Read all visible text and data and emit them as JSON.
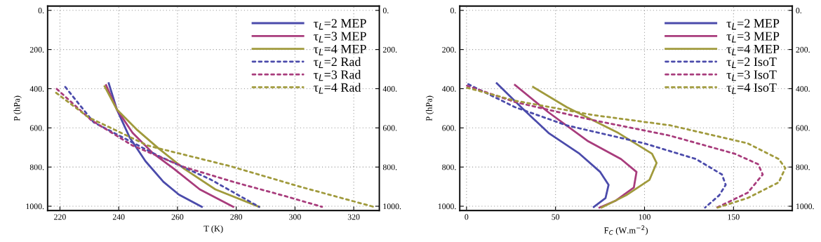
{
  "chart_data": [
    {
      "type": "line",
      "xlabel": "T (K)",
      "ylabel": "P (hPa)",
      "grid": true,
      "legend": "top right",
      "xlim": [
        215.8,
        328.7
      ],
      "xticks": [
        220,
        240,
        260,
        280,
        300,
        320
      ],
      "ylim": [
        1022,
        -22
      ],
      "yticks": [
        {
          "value": 0,
          "label": "0."
        },
        {
          "value": 200,
          "label": "200."
        },
        {
          "value": 400,
          "label": "400."
        },
        {
          "value": 600,
          "label": "600."
        },
        {
          "value": 800,
          "label": "800."
        },
        {
          "value": 1000,
          "label": "1000."
        }
      ],
      "y2lim": [
        1022,
        -22
      ],
      "y2ticks": [
        {
          "value": 0,
          "label": "0."
        },
        {
          "value": 200,
          "label": "200."
        },
        {
          "value": 400,
          "label": "400."
        },
        {
          "value": 600,
          "label": "600."
        },
        {
          "value": 800,
          "label": "800."
        },
        {
          "value": 1000,
          "label": "1000."
        }
      ],
      "series": [
        {
          "name": "τ$_{L}$=2 MEP",
          "color": "#4b4bab",
          "line_style": "solid",
          "x": [
            236.6,
            239.4,
            243.8,
            249.1,
            255.2,
            260.5,
            268.3
          ],
          "values": [
            372,
            507,
            651,
            770,
            875,
            941,
            1003
          ]
        },
        {
          "name": "τ$_{L}$=3 MEP",
          "color": "#a83c7c",
          "line_style": "solid",
          "x": [
            235.7,
            239.4,
            244.7,
            251.7,
            258.8,
            267.6,
            279.0
          ],
          "values": [
            382,
            507,
            625,
            730,
            809,
            914,
            1003
          ]
        },
        {
          "name": "τ$_{L}$=4 MEP",
          "color": "#a09a3c",
          "line_style": "solid",
          "x": [
            235.2,
            239.4,
            246.4,
            253.5,
            262.3,
            272.9,
            287.8
          ],
          "values": [
            388,
            507,
            612,
            704,
            809,
            914,
            1003
          ]
        },
        {
          "name": "τ$_{L}$=2 Rad",
          "color": "#4b4bab",
          "line_style": "dashed",
          "x": [
            221.8,
            231.5,
            253.5,
            271.1,
            287.8
          ],
          "values": [
            391,
            572,
            743,
            862,
            1003
          ]
        },
        {
          "name": "τ$_{L}$=3 Rad",
          "color": "#a83c7c",
          "line_style": "dashed",
          "x": [
            218.9,
            230.6,
            244.7,
            262.3,
            280.0,
            295.9,
            309.2
          ],
          "values": [
            401,
            560,
            690,
            800,
            880,
            945,
            1003
          ]
        },
        {
          "name": "τ$_{L}$=4 Rad",
          "color": "#a09a3c",
          "line_style": "dashed",
          "x": [
            218.7,
            229.7,
            250.0,
            278.1,
            301.9,
            326.8
          ],
          "values": [
            421,
            546,
            691,
            796,
            901,
            1003
          ]
        }
      ]
    },
    {
      "type": "line",
      "xlabel": "F$_{C}$ (W.m$^{−2}$)",
      "ylabel": "P (hPa)",
      "grid": true,
      "legend": "top right",
      "xlim": [
        -3.8,
        183.0
      ],
      "xticks": [
        0,
        50,
        100,
        150
      ],
      "ylim": [
        1022,
        -22
      ],
      "yticks": [
        {
          "value": 0,
          "label": "0."
        },
        {
          "value": 200,
          "label": "200."
        },
        {
          "value": 400,
          "label": "400."
        },
        {
          "value": 600,
          "label": "600."
        },
        {
          "value": 800,
          "label": "800."
        },
        {
          "value": 1000,
          "label": "1000."
        }
      ],
      "y2lim": [
        1022,
        -22
      ],
      "y2ticks": [
        {
          "value": 0,
          "label": "0."
        },
        {
          "value": 200,
          "label": "200."
        },
        {
          "value": 400,
          "label": "400."
        },
        {
          "value": 600,
          "label": "600."
        },
        {
          "value": 800,
          "label": "800."
        },
        {
          "value": 1000,
          "label": "1000."
        }
      ],
      "series": [
        {
          "name": "τ$_{L}$=2 MEP",
          "color": "#4b4bab",
          "line_style": "solid",
          "x": [
            17.0,
            31.5,
            46.1,
            63.5,
            75.1,
            79.8,
            78.1,
            71.5
          ],
          "values": [
            372,
            501,
            626,
            732,
            825,
            891,
            958,
            1004
          ]
        },
        {
          "name": "τ$_{L}$=3 MEP",
          "color": "#a83c7c",
          "line_style": "solid",
          "x": [
            27.2,
            46.1,
            67.9,
            86.8,
            95.5,
            94.0,
            83.9,
            74.7
          ],
          "values": [
            381,
            521,
            666,
            759,
            825,
            905,
            971,
            1007
          ]
        },
        {
          "name": "τ$_{L}$=4 MEP",
          "color": "#a09a3c",
          "line_style": "solid",
          "x": [
            37.4,
            56.3,
            85.3,
            104.2,
            106.8,
            102.8,
            89.7,
            75.9
          ],
          "values": [
            391,
            494,
            626,
            732,
            779,
            865,
            944,
            1007
          ]
        },
        {
          "name": "τ$_{L}$=2 IsoT",
          "color": "#4b4bab",
          "line_style": "dashed",
          "x": [
            1.0,
            27.2,
            56.2,
            99.9,
            128.9,
            143.5,
            145.6,
            142.0,
            134.0
          ],
          "values": [
            377,
            494,
            587,
            679,
            759,
            838,
            891,
            944,
            1007
          ]
        },
        {
          "name": "τ$_{L}$=3 IsoT",
          "color": "#a83c7c",
          "line_style": "dashed",
          "x": [
            0.3,
            27.2,
            70.8,
            114.4,
            150.7,
            163.8,
            166.4,
            158.0,
            140.6
          ],
          "values": [
            385,
            468,
            560,
            640,
            732,
            785,
            838,
            931,
            1007
          ]
        },
        {
          "name": "τ$_{L}$=4 IsoT",
          "color": "#a09a3c",
          "line_style": "dashed",
          "x": [
            0.3,
            27.2,
            70.8,
            114.4,
            158.0,
            175.4,
            179.1,
            175.4,
            158.0,
            141.1
          ],
          "values": [
            395,
            461,
            534,
            587,
            679,
            759,
            805,
            878,
            958,
            1007
          ]
        }
      ]
    }
  ]
}
